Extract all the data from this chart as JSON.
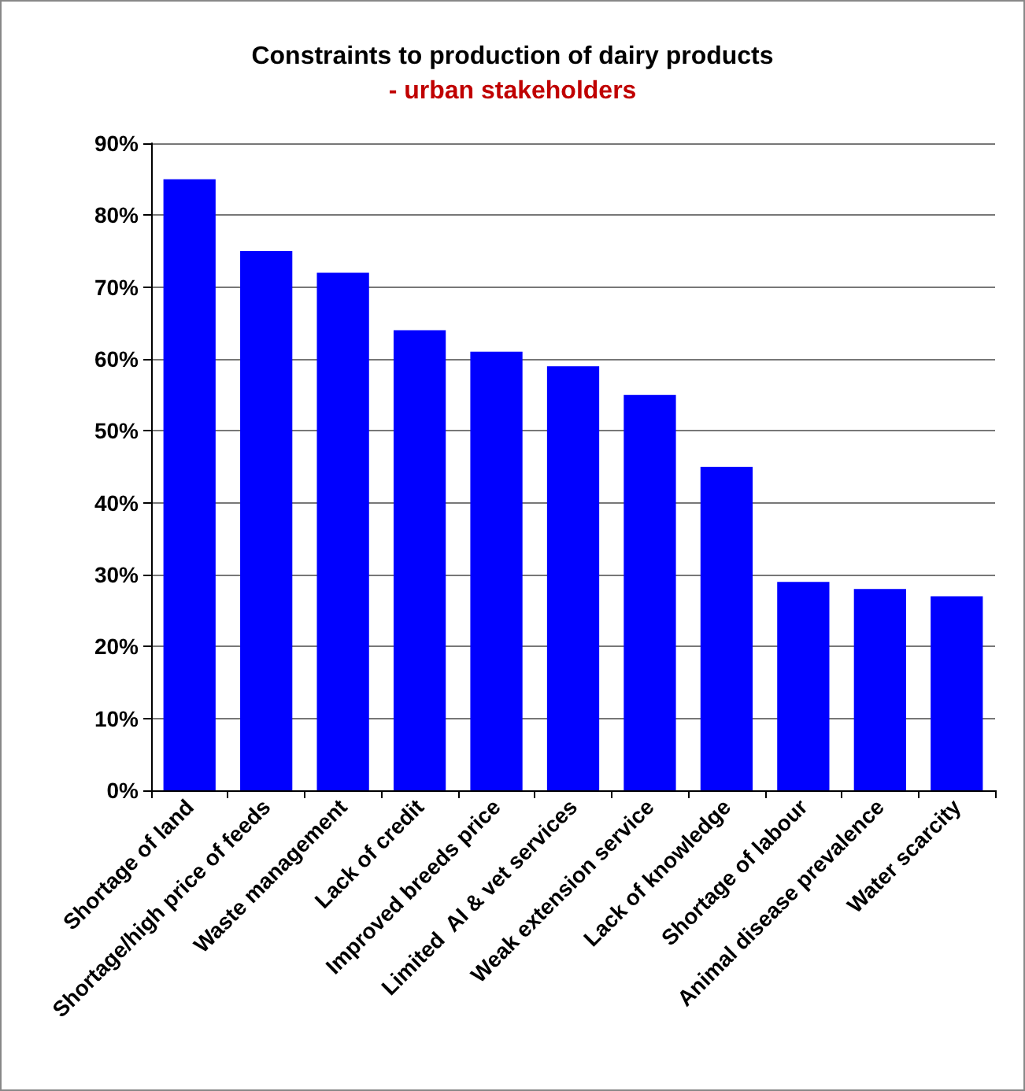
{
  "chart_data": {
    "type": "bar",
    "title": "Constraints to production of dairy products",
    "subtitle": "- urban stakeholders",
    "categories": [
      "Shortage of land",
      "Shortage/high price of feeds",
      "Waste management",
      "Lack of credit",
      "Improved breeds price",
      "Limited  AI & vet services",
      "Weak extension service",
      "Lack of knowledge",
      "Shortage of labour",
      "Animal disease prevalence",
      "Water scarcity"
    ],
    "values": [
      85,
      75,
      72,
      64,
      61,
      59,
      55,
      45,
      29,
      28,
      27
    ],
    "color": "#0000ff",
    "ylim": [
      0,
      90
    ],
    "yticks": [
      {
        "value": 0,
        "label": "0%"
      },
      {
        "value": 10,
        "label": "10%"
      },
      {
        "value": 20,
        "label": "20%"
      },
      {
        "value": 30,
        "label": "30%"
      },
      {
        "value": 40,
        "label": "40%"
      },
      {
        "value": 50,
        "label": "50%"
      },
      {
        "value": 60,
        "label": "60%"
      },
      {
        "value": 70,
        "label": "70%"
      },
      {
        "value": 80,
        "label": "80%"
      },
      {
        "value": 90,
        "label": "90%"
      }
    ],
    "grid": "y"
  }
}
